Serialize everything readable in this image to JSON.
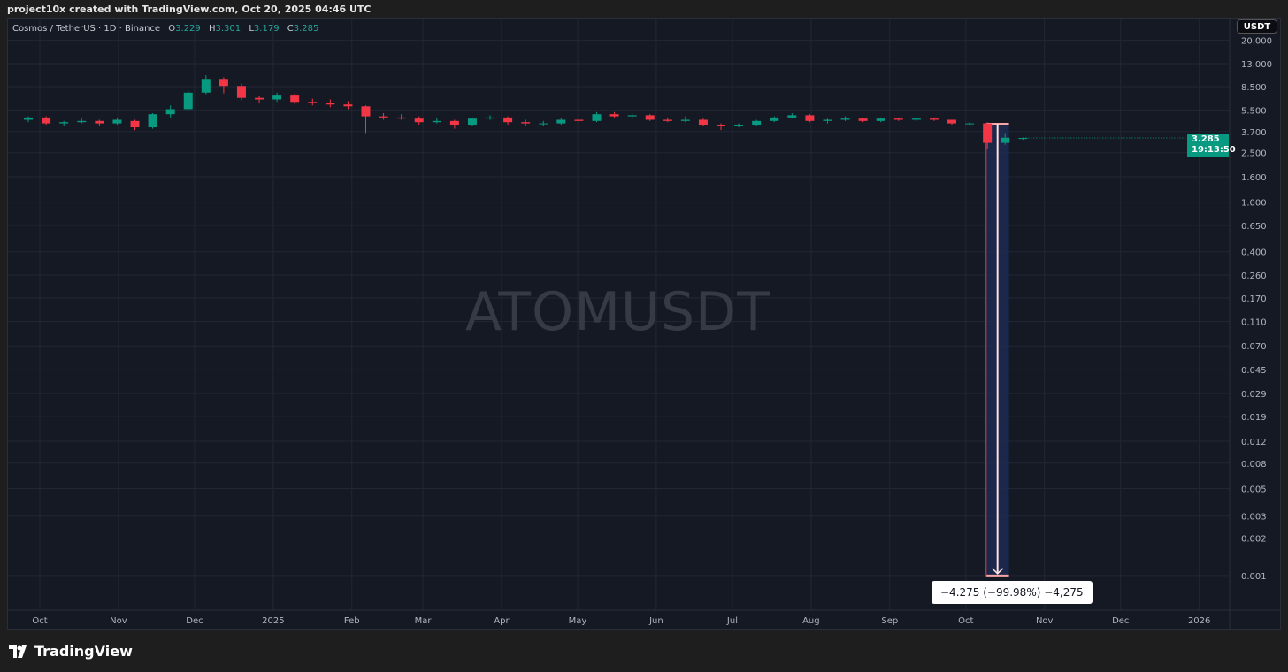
{
  "header": {
    "attribution": "project10x created with TradingView.com, Oct 20, 2025 04:46 UTC"
  },
  "legend": {
    "symbol": "Cosmos / TetherUS · 1D · Binance",
    "open_label": "O",
    "open": "3.229",
    "high_label": "H",
    "high": "3.301",
    "low_label": "L",
    "low": "3.179",
    "close_label": "C",
    "close": "3.285"
  },
  "currency_button": "USDT",
  "watermark": "ATOMUSDT",
  "last_price": {
    "value": "3.285",
    "countdown": "19:13:50"
  },
  "measure": {
    "label": "−4.275 (−99.98%) −4,275",
    "from_date": "2025-10-09",
    "to_date": "2025-10-18",
    "from_price": 4.276,
    "to_price": 0.001
  },
  "branding": "TradingView",
  "colors": {
    "up": "#089981",
    "down": "#f23645",
    "background": "#151924",
    "grid": "#232733",
    "measure_fill": "#1c2c52",
    "measure_line": "#f7a5a5"
  },
  "chart_data": {
    "type": "candlestick",
    "scale": "log",
    "interval_shown": "weekly approximation of 1D candles",
    "ylim": [
      0.001,
      20
    ],
    "grid": true,
    "y_ticks": [
      "20.000",
      "13.000",
      "8.500",
      "5.500",
      "3.700",
      "2.500",
      "1.600",
      "1.000",
      "0.650",
      "0.400",
      "0.260",
      "0.170",
      "0.110",
      "0.070",
      "0.045",
      "0.029",
      "0.019",
      "0.012",
      "0.008",
      "0.005",
      "0.003",
      "0.002",
      "0.001"
    ],
    "x_ticks": [
      {
        "label": "Oct",
        "date": "2024-10-01"
      },
      {
        "label": "Nov",
        "date": "2024-11-01"
      },
      {
        "label": "Dec",
        "date": "2024-12-01"
      },
      {
        "label": "2025",
        "date": "2025-01-01"
      },
      {
        "label": "Feb",
        "date": "2025-02-01"
      },
      {
        "label": "Mar",
        "date": "2025-03-01"
      },
      {
        "label": "Apr",
        "date": "2025-04-01"
      },
      {
        "label": "May",
        "date": "2025-05-01"
      },
      {
        "label": "Jun",
        "date": "2025-06-01"
      },
      {
        "label": "Jul",
        "date": "2025-07-01"
      },
      {
        "label": "Aug",
        "date": "2025-08-01"
      },
      {
        "label": "Sep",
        "date": "2025-09-01"
      },
      {
        "label": "Oct",
        "date": "2025-10-01"
      },
      {
        "label": "Nov",
        "date": "2025-11-01"
      },
      {
        "label": "Dec",
        "date": "2025-12-01"
      },
      {
        "label": "2026",
        "date": "2026-01-01"
      }
    ],
    "candles": [
      [
        "2024-09-23",
        4.6,
        4.9,
        4.4,
        4.8
      ],
      [
        "2024-09-30",
        4.8,
        4.9,
        4.2,
        4.3
      ],
      [
        "2024-10-07",
        4.3,
        4.5,
        4.1,
        4.4
      ],
      [
        "2024-10-14",
        4.4,
        4.7,
        4.3,
        4.5
      ],
      [
        "2024-10-21",
        4.5,
        4.6,
        4.1,
        4.3
      ],
      [
        "2024-10-28",
        4.3,
        4.8,
        4.2,
        4.6
      ],
      [
        "2024-11-04",
        4.5,
        4.6,
        3.8,
        4.0
      ],
      [
        "2024-11-11",
        4.0,
        5.2,
        3.9,
        5.1
      ],
      [
        "2024-11-18",
        5.1,
        6.0,
        4.8,
        5.6
      ],
      [
        "2024-11-25",
        5.6,
        7.9,
        5.5,
        7.6
      ],
      [
        "2024-12-02",
        7.6,
        10.5,
        7.4,
        9.8
      ],
      [
        "2024-12-09",
        9.8,
        10.1,
        7.5,
        8.6
      ],
      [
        "2024-12-16",
        8.6,
        9.0,
        6.6,
        6.9
      ],
      [
        "2024-12-23",
        6.9,
        7.1,
        6.2,
        6.7
      ],
      [
        "2024-12-30",
        6.7,
        7.6,
        6.4,
        7.2
      ],
      [
        "2025-01-06",
        7.2,
        7.5,
        6.1,
        6.4
      ],
      [
        "2025-01-13",
        6.4,
        6.8,
        6.0,
        6.3
      ],
      [
        "2025-01-20",
        6.3,
        6.7,
        5.8,
        6.1
      ],
      [
        "2025-01-27",
        6.1,
        6.5,
        5.6,
        5.9
      ],
      [
        "2025-02-03",
        5.9,
        6.0,
        3.6,
        4.9
      ],
      [
        "2025-02-10",
        4.9,
        5.2,
        4.6,
        4.8
      ],
      [
        "2025-02-17",
        4.8,
        5.1,
        4.6,
        4.7
      ],
      [
        "2025-02-24",
        4.7,
        4.9,
        4.2,
        4.4
      ],
      [
        "2025-03-03",
        4.4,
        4.8,
        4.3,
        4.5
      ],
      [
        "2025-03-10",
        4.5,
        4.6,
        3.9,
        4.2
      ],
      [
        "2025-03-17",
        4.2,
        4.8,
        4.1,
        4.7
      ],
      [
        "2025-03-24",
        4.7,
        5.0,
        4.6,
        4.8
      ],
      [
        "2025-03-31",
        4.8,
        4.9,
        4.2,
        4.4
      ],
      [
        "2025-04-07",
        4.4,
        4.6,
        4.1,
        4.3
      ],
      [
        "2025-04-14",
        4.3,
        4.5,
        4.1,
        4.3
      ],
      [
        "2025-04-21",
        4.3,
        4.8,
        4.2,
        4.6
      ],
      [
        "2025-04-28",
        4.6,
        4.8,
        4.4,
        4.5
      ],
      [
        "2025-05-05",
        4.5,
        5.3,
        4.4,
        5.1
      ],
      [
        "2025-05-12",
        5.1,
        5.3,
        4.8,
        4.9
      ],
      [
        "2025-05-19",
        4.9,
        5.2,
        4.7,
        5.0
      ],
      [
        "2025-05-26",
        5.0,
        5.1,
        4.5,
        4.6
      ],
      [
        "2025-06-02",
        4.6,
        4.8,
        4.4,
        4.5
      ],
      [
        "2025-06-09",
        4.5,
        4.9,
        4.4,
        4.6
      ],
      [
        "2025-06-16",
        4.6,
        4.7,
        4.1,
        4.2
      ],
      [
        "2025-06-23",
        4.2,
        4.3,
        3.8,
        4.1
      ],
      [
        "2025-06-30",
        4.1,
        4.3,
        4.0,
        4.2
      ],
      [
        "2025-07-07",
        4.2,
        4.6,
        4.1,
        4.5
      ],
      [
        "2025-07-14",
        4.5,
        4.9,
        4.4,
        4.8
      ],
      [
        "2025-07-21",
        4.8,
        5.2,
        4.7,
        5.0
      ],
      [
        "2025-07-28",
        5.0,
        5.1,
        4.4,
        4.5
      ],
      [
        "2025-08-04",
        4.5,
        4.7,
        4.3,
        4.6
      ],
      [
        "2025-08-11",
        4.6,
        4.9,
        4.5,
        4.7
      ],
      [
        "2025-08-18",
        4.7,
        4.8,
        4.4,
        4.5
      ],
      [
        "2025-08-25",
        4.5,
        4.8,
        4.4,
        4.7
      ],
      [
        "2025-09-01",
        4.7,
        4.8,
        4.5,
        4.6
      ],
      [
        "2025-09-08",
        4.6,
        4.8,
        4.5,
        4.7
      ],
      [
        "2025-09-15",
        4.7,
        4.8,
        4.5,
        4.6
      ],
      [
        "2025-09-22",
        4.6,
        4.6,
        4.2,
        4.3
      ],
      [
        "2025-09-29",
        4.3,
        4.4,
        4.2,
        4.3
      ],
      [
        "2025-10-06",
        4.3,
        4.4,
        2.7,
        3.0
      ],
      [
        "2025-10-13",
        3.0,
        3.6,
        2.9,
        3.3
      ],
      [
        "2025-10-20",
        3.229,
        3.301,
        3.179,
        3.285
      ]
    ]
  }
}
